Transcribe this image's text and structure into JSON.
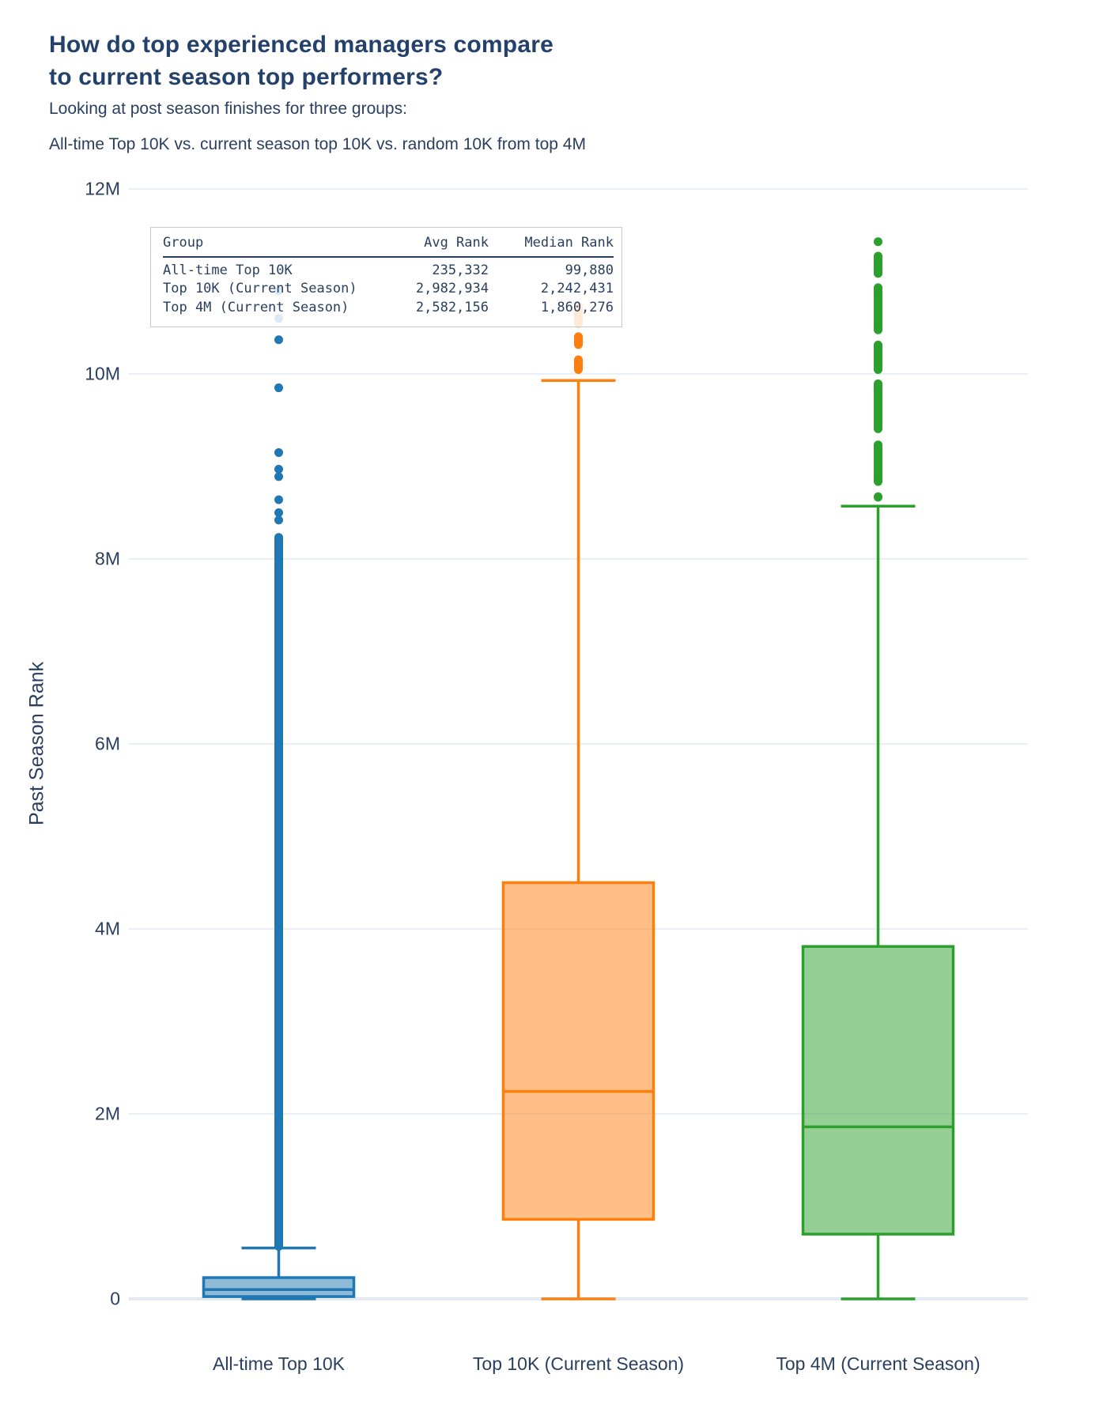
{
  "title": {
    "line1": "How do top experienced managers compare",
    "line2": "to current season top performers?"
  },
  "subtitle": {
    "line1": "Looking at post season finishes for three groups:",
    "line2": "All-time Top 10K vs. current season top 10K vs. random 10K from top 4M"
  },
  "summary_table": {
    "headers": [
      "Group",
      "Avg Rank",
      "Median Rank"
    ],
    "rows": [
      {
        "group": "All-time Top 10K",
        "avg": "235,332",
        "median": "99,880"
      },
      {
        "group": "Top 10K (Current Season)",
        "avg": "2,982,934",
        "median": "2,242,431"
      },
      {
        "group": "Top 4M (Current Season)",
        "avg": "2,582,156",
        "median": "1,860,276"
      }
    ]
  },
  "colors": {
    "text": "#2a3f5f",
    "grid": "#e9eff6",
    "zero_line": "#e3eaf1",
    "background": "#ffffff",
    "blue": "#1f77b4",
    "orange": "#ff7f0e",
    "green": "#2ca02c"
  },
  "chart_data": {
    "type": "box",
    "title": "How do top experienced managers compare to current season top performers?",
    "xlabel": "",
    "ylabel": "Past Season Rank",
    "units": "millions",
    "ylim_millions": [
      0,
      12
    ],
    "grid": true,
    "yticks": [
      {
        "value": 0,
        "label": "0"
      },
      {
        "value": 2,
        "label": "2M"
      },
      {
        "value": 4,
        "label": "4M"
      },
      {
        "value": 6,
        "label": "6M"
      },
      {
        "value": 8,
        "label": "8M"
      },
      {
        "value": 10,
        "label": "10M"
      },
      {
        "value": 12,
        "label": "12M"
      }
    ],
    "groups": [
      {
        "label": "All-time Top 10K",
        "color": "#1f77b4",
        "fill": "rgba(31,119,180,0.5)",
        "avg_rank": 235332,
        "median_rank": 99880,
        "stats_millions": {
          "whisker_low": 0,
          "q1": 0.025,
          "median": 0.0999,
          "q3": 0.23,
          "whisker_high": 0.55
        },
        "outlier_ranges_millions": [
          [
            0.52,
            8.28
          ]
        ],
        "outlier_points_millions": [
          8.42,
          8.5,
          8.64,
          8.89,
          8.97,
          9.15,
          9.85,
          10.37,
          10.6,
          10.9
        ]
      },
      {
        "label": "Top 10K (Current Season)",
        "color": "#ff7f0e",
        "fill": "rgba(255,127,14,0.5)",
        "avg_rank": 2982934,
        "median_rank": 2242431,
        "stats_millions": {
          "whisker_low": 0,
          "q1": 0.86,
          "median": 2.242,
          "q3": 4.5,
          "whisker_high": 9.93
        },
        "outlier_ranges_millions": [
          [
            10.0,
            10.2
          ],
          [
            10.27,
            10.45
          ],
          [
            10.5,
            10.78
          ]
        ],
        "outlier_points_millions": []
      },
      {
        "label": "Top 4M (Current Season)",
        "color": "#2ca02c",
        "fill": "rgba(44,160,44,0.5)",
        "avg_rank": 2582156,
        "median_rank": 1860276,
        "stats_millions": {
          "whisker_low": 0,
          "q1": 0.7,
          "median": 1.86,
          "q3": 3.81,
          "whisker_high": 8.57
        },
        "outlier_ranges_millions": [
          [
            8.62,
            8.72
          ],
          [
            8.79,
            9.28
          ],
          [
            9.36,
            9.94
          ],
          [
            10.0,
            10.36
          ],
          [
            10.43,
            10.98
          ],
          [
            11.04,
            11.32
          ]
        ],
        "outlier_points_millions": [
          11.43
        ]
      }
    ]
  }
}
